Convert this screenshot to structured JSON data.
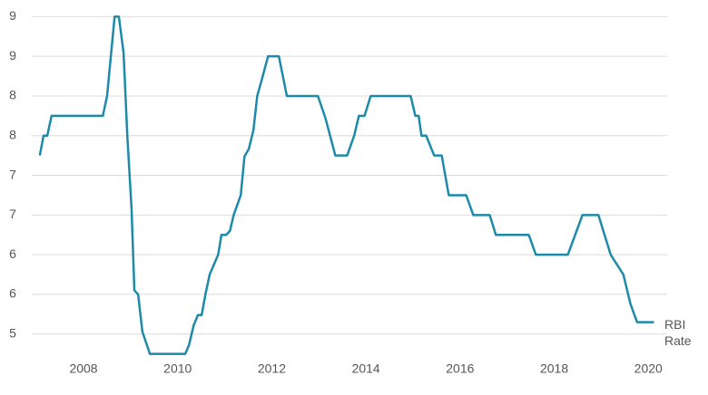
{
  "chart_data": {
    "type": "line",
    "x": [
      2007.07,
      2007.15,
      2007.23,
      2007.32,
      2008.41,
      2008.5,
      2008.66,
      2008.75,
      2008.85,
      2008.93,
      2009.02,
      2009.08,
      2009.16,
      2009.25,
      2009.41,
      2010.16,
      2010.24,
      2010.34,
      2010.43,
      2010.51,
      2010.59,
      2010.68,
      2010.86,
      2010.93,
      2011.03,
      2011.11,
      2011.19,
      2011.34,
      2011.42,
      2011.51,
      2011.61,
      2011.69,
      2011.78,
      2011.92,
      2012.15,
      2012.32,
      2012.98,
      2013.14,
      2013.35,
      2013.6,
      2013.75,
      2013.85,
      2013.97,
      2014.1,
      2014.95,
      2015.05,
      2015.12,
      2015.18,
      2015.28,
      2015.45,
      2015.61,
      2015.76,
      2016.13,
      2016.28,
      2016.63,
      2016.76,
      2017.46,
      2017.61,
      2018.29,
      2018.6,
      2018.94,
      2019.2,
      2019.47,
      2019.62,
      2019.76,
      2020.12
    ],
    "series": [
      {
        "name": "RBI Rate",
        "color": "#1d8aaa",
        "values": [
          7.25,
          7.5,
          7.5,
          7.75,
          7.75,
          8.0,
          9.0,
          9.0,
          8.55,
          7.5,
          6.58,
          5.55,
          5.5,
          5.03,
          4.75,
          4.75,
          4.86,
          5.11,
          5.24,
          5.24,
          5.5,
          5.75,
          6.0,
          6.25,
          6.25,
          6.3,
          6.5,
          6.75,
          7.24,
          7.33,
          7.57,
          8.0,
          8.19,
          8.5,
          8.5,
          8.0,
          8.0,
          7.72,
          7.25,
          7.25,
          7.5,
          7.75,
          7.75,
          8.0,
          8.0,
          7.75,
          7.75,
          7.5,
          7.5,
          7.25,
          7.25,
          6.75,
          6.75,
          6.5,
          6.5,
          6.25,
          6.25,
          6.0,
          6.0,
          6.5,
          6.5,
          6.0,
          5.75,
          5.38,
          5.15,
          5.15
        ]
      }
    ],
    "xlim": [
      2006.9,
      2020.4
    ],
    "xticks": [
      2008,
      2010,
      2012,
      2014,
      2016,
      2018,
      2020
    ],
    "ylim": [
      4.7,
      9.05
    ],
    "yticks": [
      {
        "value": 9,
        "label": "9"
      },
      {
        "value": 8.5,
        "label": "9"
      },
      8,
      {
        "value": 7.5,
        "label": "8"
      },
      7,
      {
        "value": 6.5,
        "label": "7"
      },
      6,
      {
        "value": 5.5,
        "label": "6"
      },
      5
    ],
    "grid": true
  }
}
